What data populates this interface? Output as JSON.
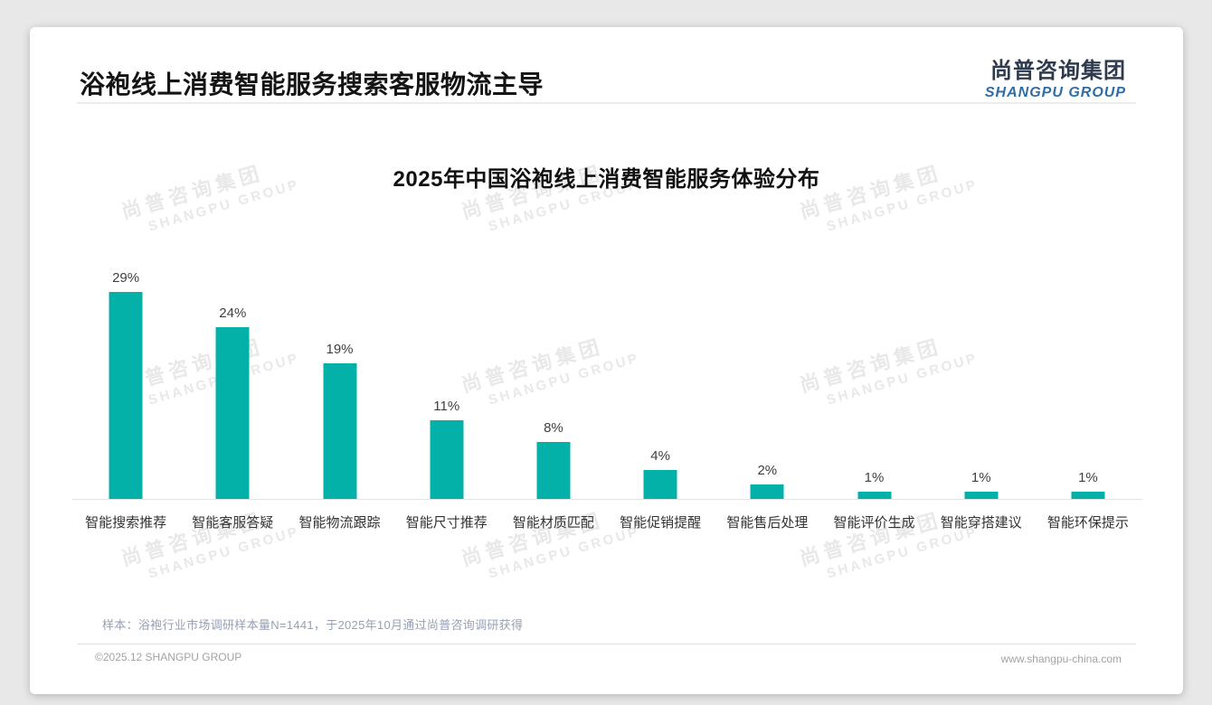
{
  "page": {
    "title": "浴袍线上消费智能服务搜索客服物流主导",
    "logo": {
      "cn": "尚普咨询集团",
      "en": "SHANGPU GROUP"
    },
    "watermark": {
      "cn": "尚普咨询集团",
      "en": "SHANGPU GROUP"
    },
    "footnote": "样本：浴袍行业市场调研样本量N=1441，于2025年10月通过尚普咨询调研获得",
    "footer": {
      "copyright": "©2025.12 SHANGPU GROUP",
      "website": "www.shangpu-china.com"
    }
  },
  "chart_data": {
    "type": "bar",
    "title": "2025年中国浴袍线上消费智能服务体验分布",
    "categories": [
      "智能搜索推荐",
      "智能客服答疑",
      "智能物流跟踪",
      "智能尺寸推荐",
      "智能材质匹配",
      "智能促销提醒",
      "智能售后处理",
      "智能评价生成",
      "智能穿搭建议",
      "智能环保提示"
    ],
    "values": [
      29,
      24,
      19,
      11,
      8,
      4,
      2,
      1,
      1,
      1
    ],
    "unit": "%",
    "value_label_format": "{v}%",
    "bar_color": "#04b1a8",
    "label_color": "#404040",
    "ylim": [
      0,
      30
    ],
    "grid": false,
    "legend": false,
    "xlabel": "",
    "ylabel": ""
  }
}
